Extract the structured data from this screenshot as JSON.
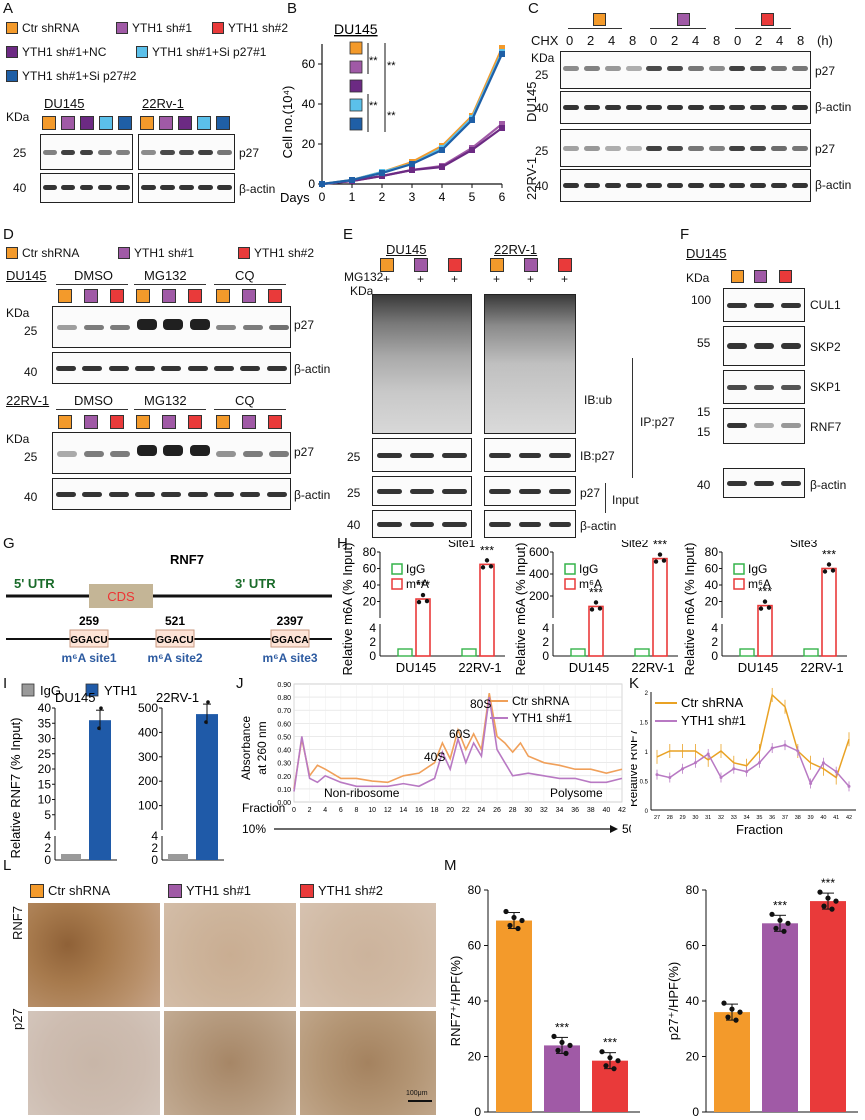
{
  "colors": {
    "orange": "#f39a2b",
    "purple": "#a05aa6",
    "red": "#e93a3a",
    "darkpurple": "#6c2a83",
    "lightblue": "#5bc0ea",
    "blue": "#1f5fa6",
    "green": "#35b34a",
    "gray": "#9a9a9a",
    "dkblue": "#1f5aa8",
    "ctr_line": "#f0a05a",
    "yth_line": "#b879c3"
  },
  "panelA": {
    "label": "A",
    "legend": [
      "Ctr shRNA",
      "YTH1 sh#1",
      "YTH1 sh#2",
      "YTH1 sh#1+NC",
      "YTH1 sh#1+Si p27#1",
      "YTH1 sh#1+Si p27#2"
    ],
    "cells": [
      "DU145",
      "22Rv-1"
    ],
    "kda": "KDa",
    "mw": [
      "25",
      "40"
    ],
    "bands": [
      "p27",
      "β-actin"
    ]
  },
  "panelB": {
    "label": "B",
    "title": "DU145",
    "ylabel": "Cell no.(10⁴)",
    "xlabel": "Days",
    "sig": [
      "**",
      "**",
      "**",
      "**"
    ]
  },
  "panelC": {
    "label": "C",
    "chx": "CHX",
    "times": [
      "0",
      "2",
      "4",
      "8",
      "0",
      "2",
      "4",
      "8",
      "0",
      "2",
      "4",
      "8"
    ],
    "unit": "(h)",
    "kda": "KDa",
    "cells": [
      "DU145",
      "22RV-1"
    ],
    "mw": [
      "25",
      "40",
      "25",
      "40"
    ],
    "bands": [
      "p27",
      "β-actin",
      "p27",
      "β-actin"
    ]
  },
  "panelD": {
    "label": "D",
    "legend": [
      "Ctr shRNA",
      "YTH1 sh#1",
      "YTH1 sh#2"
    ],
    "cell1": "DU145",
    "cell2": "22RV-1",
    "treatments": [
      "DMSO",
      "MG132",
      "CQ"
    ],
    "kda": "KDa",
    "mw": [
      "25",
      "40",
      "25",
      "40"
    ],
    "bands": [
      "p27",
      "β-actin",
      "p27",
      "β-actin"
    ]
  },
  "panelE": {
    "label": "E",
    "cells": [
      "DU145",
      "22RV-1"
    ],
    "mg": "MG132",
    "kda": "KDa",
    "plus": "+",
    "mw": [
      "25",
      "25",
      "40"
    ],
    "bands": [
      "IB:ub",
      "IB:p27",
      "p27",
      "β-actin"
    ],
    "ip": "IP:p27",
    "input": "Input"
  },
  "panelF": {
    "label": "F",
    "cell": "DU145",
    "kda": "KDa",
    "mw": [
      "100",
      "55",
      "15",
      "15",
      "40"
    ],
    "bands": [
      "CUL1",
      "SKP2",
      "SKP1",
      "RNF7",
      "β-actin"
    ]
  },
  "panelG": {
    "label": "G",
    "title": "RNF7",
    "utr5": "5' UTR",
    "cds": "CDS",
    "utr3": "3' UTR",
    "positions": [
      "259",
      "521",
      "2397"
    ],
    "motifs": [
      "GGACU",
      "GGACU",
      "GGACA"
    ],
    "sites": [
      "m⁶A site1",
      "m⁶A site2",
      "m⁶A site3"
    ]
  },
  "panelH": {
    "label": "H",
    "ylabel": "Relative m6A (% Input)",
    "titles": [
      "Site1",
      "Site2",
      "Site3"
    ],
    "legend": [
      "IgG",
      "m⁶A"
    ],
    "cells": [
      "DU145",
      "22RV-1"
    ],
    "sig": "***"
  },
  "panelI": {
    "label": "I",
    "legend": [
      "IgG",
      "YTH1"
    ],
    "ylabel": "Relative RNF7 (% Input)",
    "cells": [
      "DU145",
      "22RV-1"
    ]
  },
  "panelJ": {
    "label": "J",
    "ylabel": "Absorbance at 260 nm",
    "xlabel": "Fraction",
    "legend": [
      "Ctr shRNA",
      "YTH1 sh#1"
    ],
    "peaks": [
      "40S",
      "60S",
      "80S"
    ],
    "regions": [
      "Non-ribosome",
      "Polysome"
    ],
    "range": [
      "10%",
      "50%"
    ]
  },
  "panelK": {
    "label": "K",
    "ylabel": "Relative RNF7",
    "xlabel": "Fraction",
    "legend": [
      "Ctr shRNA",
      "YTH1 sh#1"
    ]
  },
  "panelL": {
    "label": "L",
    "legend": [
      "Ctr shRNA",
      "YTH1 sh#1",
      "YTH1 sh#2"
    ],
    "rows": [
      "RNF7",
      "p27"
    ],
    "scale": "100μm"
  },
  "panelM": {
    "label": "M",
    "ylabel1": "RNF7⁺/HPF(%)",
    "ylabel2": "p27⁺/HPF(%)",
    "sig": "***"
  },
  "chart_data": [
    {
      "type": "line",
      "title": "DU145",
      "xlabel": "Days",
      "ylabel": "Cell no.(10⁴)",
      "x": [
        0,
        1,
        2,
        3,
        4,
        5,
        6
      ],
      "ylim": [
        0,
        70
      ],
      "series": [
        {
          "values": [
            0,
            2,
            6,
            11,
            19,
            34,
            68
          ]
        },
        {
          "values": [
            0,
            1.5,
            4,
            7,
            9,
            18,
            30
          ]
        },
        {
          "values": [
            0,
            1.5,
            4,
            7,
            8.5,
            17,
            28
          ]
        },
        {
          "values": [
            0,
            2,
            6,
            10,
            18,
            33,
            66
          ]
        },
        {
          "values": [
            0,
            2,
            5.5,
            10,
            17,
            32,
            65
          ]
        }
      ]
    },
    {
      "type": "bar",
      "title": "Site1",
      "categories": [
        "DU145",
        "22RV-1"
      ],
      "ylabel": "Relative m6A (% Input)",
      "series": [
        {
          "name": "IgG",
          "values": [
            1,
            1
          ]
        },
        {
          "name": "m⁶A",
          "values": [
            23,
            65
          ]
        }
      ]
    },
    {
      "type": "bar",
      "title": "Site2",
      "categories": [
        "DU145",
        "22RV-1"
      ],
      "series": [
        {
          "name": "IgG",
          "values": [
            1,
            1
          ]
        },
        {
          "name": "m⁶A",
          "values": [
            105,
            540
          ]
        }
      ]
    },
    {
      "type": "bar",
      "title": "Site3",
      "categories": [
        "DU145",
        "22RV-1"
      ],
      "series": [
        {
          "name": "IgG",
          "values": [
            1,
            1
          ]
        },
        {
          "name": "m⁶A",
          "values": [
            15,
            60
          ]
        }
      ]
    },
    {
      "type": "bar",
      "title": "DU145",
      "categories": [
        "IgG",
        "YTH1"
      ],
      "ylabel": "Relative RNF7 (% Input)",
      "values": [
        1,
        36
      ]
    },
    {
      "type": "bar",
      "title": "22RV-1",
      "categories": [
        "IgG",
        "YTH1"
      ],
      "values": [
        1,
        475
      ]
    },
    {
      "type": "bar",
      "categories": [
        "Ctr shRNA",
        "YTH1 sh#1",
        "YTH1 sh#2"
      ],
      "ylabel": "RNF7⁺/HPF(%)",
      "values": [
        69,
        24,
        18.5
      ],
      "ylim": [
        0,
        80
      ]
    },
    {
      "type": "bar",
      "categories": [
        "Ctr shRNA",
        "YTH1 sh#1",
        "YTH1 sh#2"
      ],
      "ylabel": "p27⁺/HPF(%)",
      "values": [
        36,
        68,
        76
      ],
      "ylim": [
        0,
        80
      ]
    }
  ]
}
